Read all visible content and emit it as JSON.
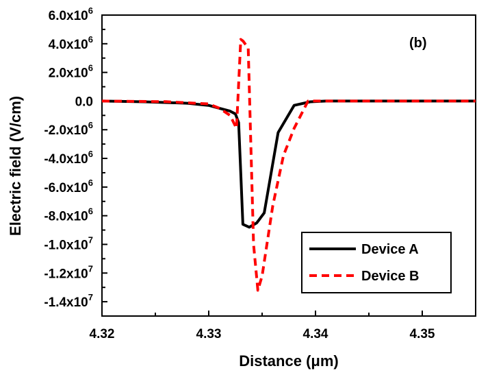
{
  "chart_data": {
    "type": "line",
    "xlabel": "Distance (μm)",
    "ylabel": "Electric field (V/cm)",
    "xlim": [
      4.32,
      4.355
    ],
    "ylim": [
      -15000000,
      6000000
    ],
    "x_ticks": [
      4.32,
      4.33,
      4.34,
      4.35
    ],
    "x_tick_labels": [
      "4.32",
      "4.33",
      "4.34",
      "4.35"
    ],
    "y_ticks": [
      6000000,
      4000000,
      2000000,
      0,
      -2000000,
      -4000000,
      -6000000,
      -8000000,
      -10000000,
      -12000000,
      -14000000
    ],
    "y_tick_labels": [
      {
        "base": "6.0x10",
        "exp": "6"
      },
      {
        "base": "4.0x10",
        "exp": "6"
      },
      {
        "base": "2.0x10",
        "exp": "6"
      },
      {
        "base": "0.0",
        "exp": ""
      },
      {
        "base": "-2.0x10",
        "exp": "6"
      },
      {
        "base": "-4.0x10",
        "exp": "6"
      },
      {
        "base": "-6.0x10",
        "exp": "6"
      },
      {
        "base": "-8.0x10",
        "exp": "6"
      },
      {
        "base": "-1.0x10",
        "exp": "7"
      },
      {
        "base": "-1.2x10",
        "exp": "7"
      },
      {
        "base": "-1.4x10",
        "exp": "7"
      }
    ],
    "annotation": "(b)",
    "grid": false,
    "legend_position": "bottom-right",
    "series": [
      {
        "name": "Device A",
        "color": "#000000",
        "style": "solid",
        "x": [
          4.32,
          4.324,
          4.328,
          4.33,
          4.331,
          4.332,
          4.3325,
          4.3328,
          4.333,
          4.3332,
          4.3338,
          4.3345,
          4.3352,
          4.3365,
          4.338,
          4.3395,
          4.341,
          4.345,
          4.355
        ],
        "y": [
          0,
          -50000,
          -150000,
          -300000,
          -500000,
          -700000,
          -900000,
          -1500000,
          -5000000,
          -8600000,
          -8800000,
          -8500000,
          -7800000,
          -2200000,
          -300000,
          -50000,
          0,
          0,
          0
        ]
      },
      {
        "name": "Device B",
        "color": "#ff0000",
        "style": "dashed",
        "x": [
          4.32,
          4.326,
          4.33,
          4.331,
          4.332,
          4.3326,
          4.333,
          4.3332,
          4.3337,
          4.3342,
          4.3346,
          4.335,
          4.336,
          4.337,
          4.338,
          4.3393,
          4.341,
          4.345,
          4.355
        ],
        "y": [
          0,
          -40000,
          -200000,
          -500000,
          -1000000,
          -1900000,
          4300000,
          4200000,
          3700000,
          -10000000,
          -13200000,
          -12200000,
          -7300000,
          -3800000,
          -1900000,
          0,
          0,
          0,
          0
        ]
      }
    ]
  }
}
